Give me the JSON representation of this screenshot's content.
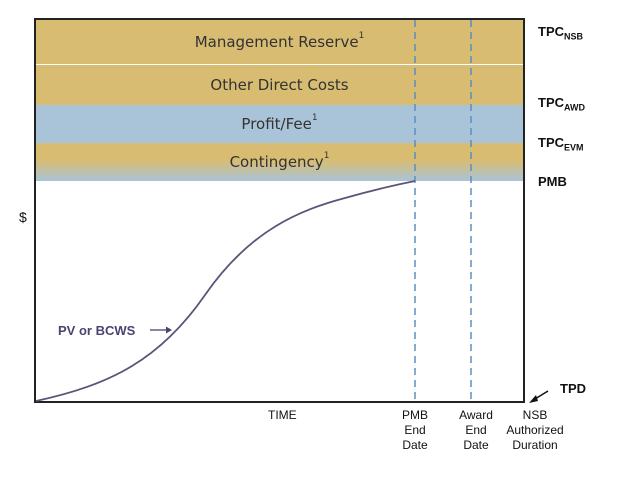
{
  "bands": [
    {
      "text": "Management Reserve",
      "sup": "1"
    },
    {
      "text": "Other Direct Costs",
      "sup": ""
    },
    {
      "text": "Profit/Fee",
      "sup": "1"
    },
    {
      "text": "Contingency",
      "sup": "1"
    }
  ],
  "right_labels": {
    "tpc_nsb": {
      "main": "TPC",
      "sub": "NSB"
    },
    "tpc_awd": {
      "main": "TPC",
      "sub": "AWD"
    },
    "tpc_evm": {
      "main": "TPC",
      "sub": "EVM"
    },
    "pmb": "PMB",
    "tpd": "TPD"
  },
  "y_axis_label": "$",
  "x_axis_label": "TIME",
  "curve_label": "PV or BCWS",
  "x_markers": [
    {
      "lines": [
        "PMB",
        "End",
        "Date"
      ]
    },
    {
      "lines": [
        "Award",
        "End",
        "Date"
      ]
    },
    {
      "lines": [
        "NSB",
        "Authorized",
        "Duration"
      ]
    }
  ],
  "colors": {
    "gold": "#d8bc72",
    "blue": "#a9c4d8",
    "curve": "#5e5278",
    "dashed": "#5b8fc0"
  }
}
